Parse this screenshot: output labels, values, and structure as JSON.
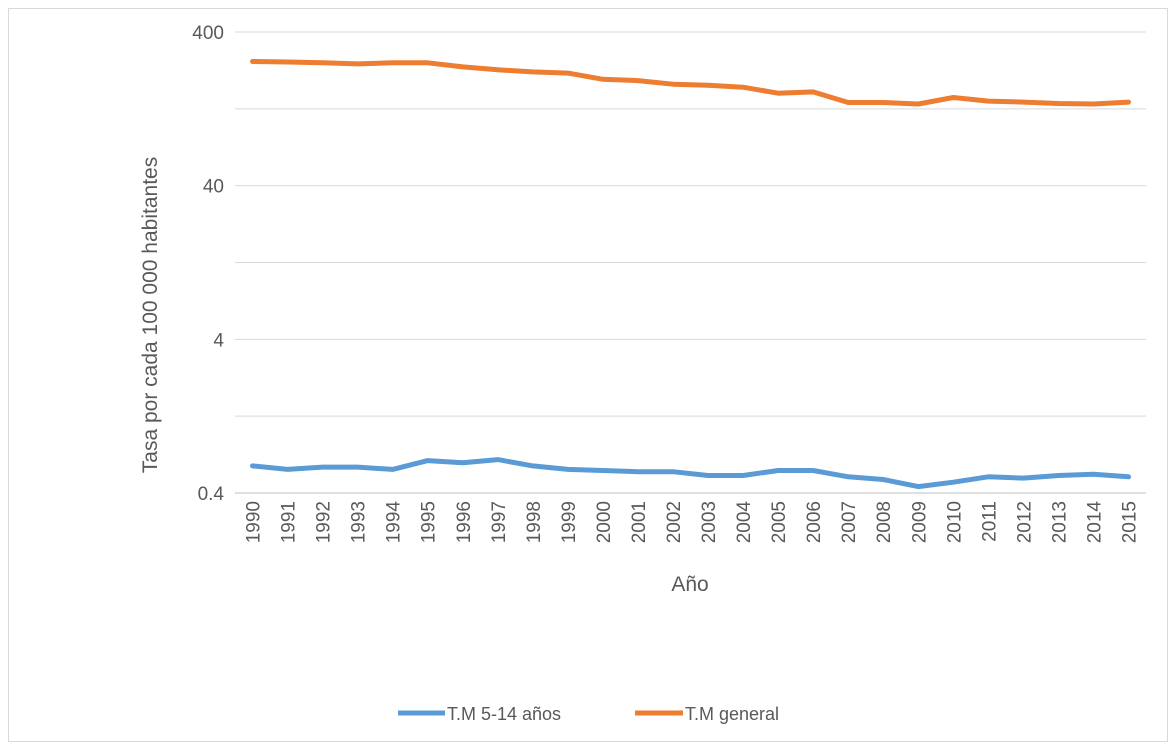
{
  "chart_data": {
    "type": "line",
    "title": "",
    "xlabel": "Año",
    "ylabel": "Tasa por cada 100 000 habitantes",
    "y_scale": "log",
    "ylim": [
      0.4,
      400
    ],
    "y_ticks": [
      0.4,
      4,
      40,
      400
    ],
    "y_tick_labels": [
      "0.4",
      "4",
      "40",
      "400"
    ],
    "grid": true,
    "legend_position": "bottom",
    "x": [
      "1990",
      "1991",
      "1992",
      "1993",
      "1994",
      "1995",
      "1996",
      "1997",
      "1998",
      "1999",
      "2000",
      "2001",
      "2002",
      "2003",
      "2004",
      "2005",
      "2006",
      "2007",
      "2008",
      "2009",
      "2010",
      "2011",
      "2012",
      "2013",
      "2014",
      "2015"
    ],
    "series": [
      {
        "name": "T.M 5-14 años",
        "color": "#5b9bd5",
        "values": [
          0.6,
          0.57,
          0.59,
          0.59,
          0.57,
          0.65,
          0.63,
          0.66,
          0.6,
          0.57,
          0.56,
          0.55,
          0.55,
          0.52,
          0.52,
          0.56,
          0.56,
          0.51,
          0.49,
          0.44,
          0.47,
          0.51,
          0.5,
          0.52,
          0.53,
          0.51
        ]
      },
      {
        "name": "T.M general",
        "color": "#ed7d31",
        "values": [
          257,
          255,
          252,
          248,
          252,
          252,
          237,
          227,
          220,
          216,
          197,
          193,
          183,
          180,
          175,
          160,
          163,
          139,
          139,
          136,
          150,
          142,
          140,
          137,
          136,
          140
        ]
      }
    ]
  }
}
